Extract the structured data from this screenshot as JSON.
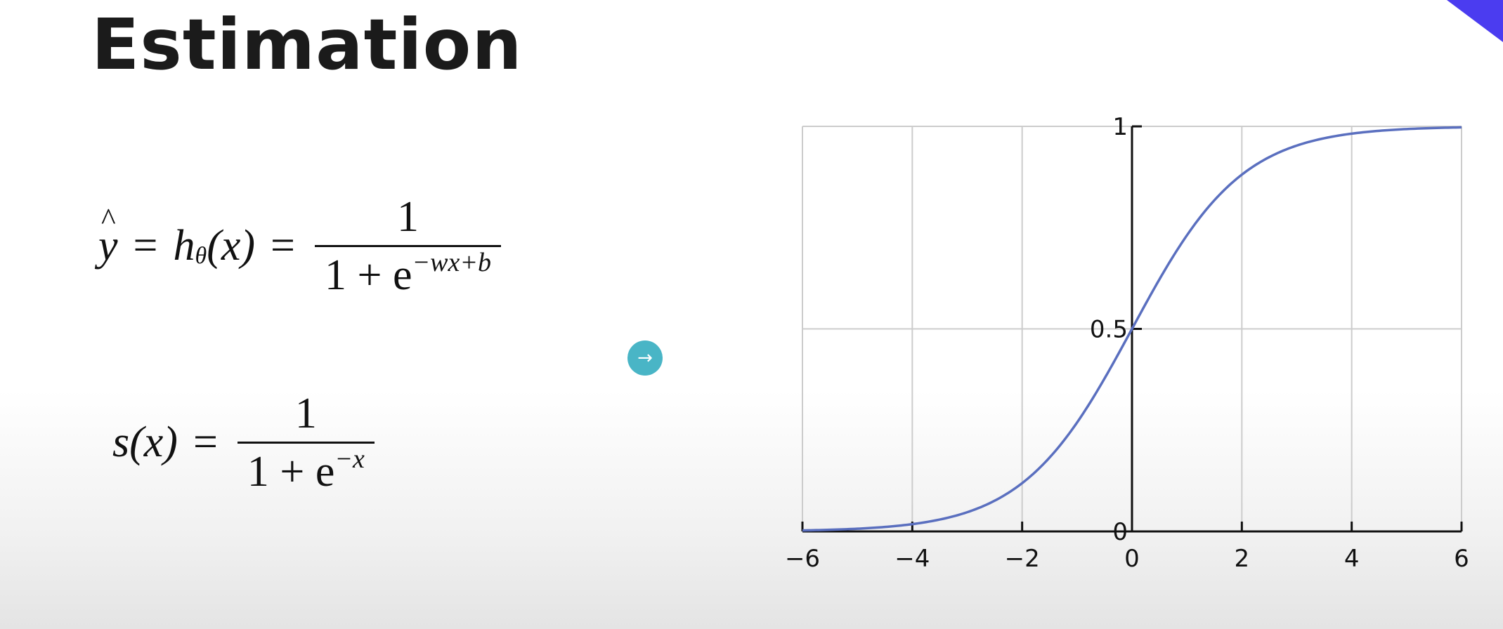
{
  "slide": {
    "title": "Estimation"
  },
  "equation1": {
    "lhs_y": "y",
    "eq": "=",
    "h": "h",
    "theta": "θ",
    "arg": "(x)",
    "eq2": "=",
    "numerator": "1",
    "den_base": "1 + e",
    "den_exp": "−wx+b"
  },
  "equation2": {
    "lhs": "s(x)",
    "eq": "=",
    "numerator": "1",
    "den_base": "1 + e",
    "den_exp": "−x"
  },
  "nav": {
    "arrow_icon": "→"
  },
  "colors": {
    "curve": "#5a6fbf",
    "grid": "#cccccc",
    "nav_button": "#49b5c6",
    "corner_accent": "#4b3cf0"
  },
  "chart_data": {
    "type": "line",
    "function": "sigmoid",
    "x": [
      -6,
      -5.5,
      -5,
      -4.5,
      -4,
      -3.5,
      -3,
      -2.5,
      -2,
      -1.5,
      -1,
      -0.5,
      0,
      0.5,
      1,
      1.5,
      2,
      2.5,
      3,
      3.5,
      4,
      4.5,
      5,
      5.5,
      6
    ],
    "y": [
      0.0025,
      0.0041,
      0.0067,
      0.011,
      0.018,
      0.0293,
      0.0474,
      0.0759,
      0.1192,
      0.1824,
      0.2689,
      0.3775,
      0.5,
      0.6225,
      0.7311,
      0.8176,
      0.8808,
      0.9241,
      0.9526,
      0.9707,
      0.982,
      0.989,
      0.9933,
      0.9959,
      0.9975
    ],
    "xlim": [
      -6,
      6
    ],
    "ylim": [
      0,
      1
    ],
    "x_ticks": [
      -6,
      -4,
      -2,
      0,
      2,
      4,
      6
    ],
    "x_tick_labels": [
      "−6",
      "−4",
      "−2",
      "0",
      "2",
      "4",
      "6"
    ],
    "y_ticks": [
      0,
      0.5,
      1
    ],
    "y_tick_labels": [
      "0",
      "0.5",
      "1"
    ],
    "grid": true,
    "title": "",
    "xlabel": "",
    "ylabel": ""
  }
}
